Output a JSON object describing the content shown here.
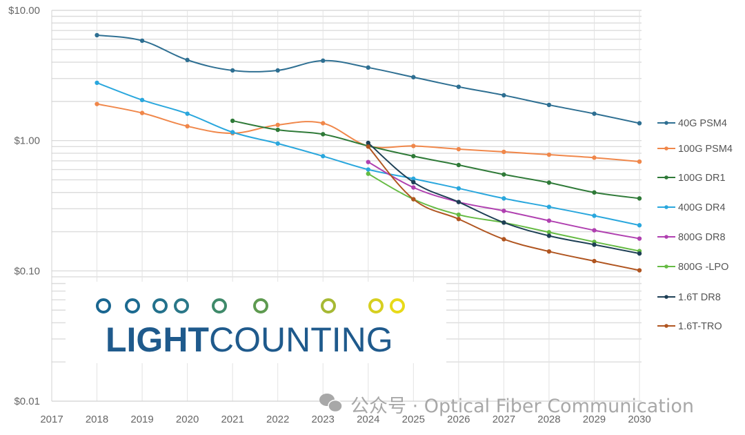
{
  "chart_data": {
    "type": "line",
    "title": "",
    "xlabel": "",
    "ylabel": "",
    "yscale": "log",
    "ylim": [
      0.01,
      10
    ],
    "xlim": [
      2017,
      2030
    ],
    "grid": true,
    "legend_position": "right",
    "y_ticks": [
      {
        "value": 10,
        "label": "$10.00"
      },
      {
        "value": 1,
        "label": "$1.00"
      },
      {
        "value": 0.1,
        "label": "$0.10"
      },
      {
        "value": 0.01,
        "label": "$0.01"
      }
    ],
    "x_ticks": [
      "2017",
      "2018",
      "2019",
      "2020",
      "2021",
      "2022",
      "2023",
      "2024",
      "2025",
      "2026",
      "2027",
      "2028",
      "2029",
      "2030"
    ],
    "series": [
      {
        "name": "40G PSM4",
        "color": "#2e6f92",
        "x": [
          2018,
          2019,
          2020,
          2021,
          2022,
          2023,
          2024,
          2025,
          2026,
          2027,
          2028,
          2029,
          2030
        ],
        "values": [
          6.45,
          5.85,
          4.16,
          3.46,
          3.46,
          4.11,
          3.64,
          3.07,
          2.59,
          2.23,
          1.88,
          1.61,
          1.36
        ]
      },
      {
        "name": "100G PSM4",
        "color": "#f0874a",
        "x": [
          2018,
          2019,
          2020,
          2021,
          2022,
          2023,
          2024,
          2025,
          2026,
          2027,
          2028,
          2029,
          2030
        ],
        "values": [
          1.91,
          1.63,
          1.29,
          1.14,
          1.32,
          1.36,
          0.91,
          0.91,
          0.86,
          0.82,
          0.78,
          0.74,
          0.69
        ]
      },
      {
        "name": "100G DR1",
        "color": "#2f7a38",
        "x": [
          2021,
          2022,
          2023,
          2024,
          2025,
          2026,
          2027,
          2028,
          2029,
          2030
        ],
        "values": [
          1.42,
          1.21,
          1.12,
          0.91,
          0.76,
          0.65,
          0.55,
          0.476,
          0.4,
          0.36
        ]
      },
      {
        "name": "400G DR4",
        "color": "#2aa7dd",
        "x": [
          2018,
          2019,
          2020,
          2021,
          2022,
          2023,
          2024,
          2025,
          2026,
          2027,
          2028,
          2029,
          2030
        ],
        "values": [
          2.78,
          2.05,
          1.61,
          1.16,
          0.95,
          0.76,
          0.6,
          0.51,
          0.43,
          0.36,
          0.31,
          0.265,
          0.224
        ]
      },
      {
        "name": "800G DR8",
        "color": "#b040b0",
        "x": [
          2024,
          2025,
          2026,
          2027,
          2028,
          2029,
          2030
        ],
        "values": [
          0.685,
          0.437,
          0.338,
          0.289,
          0.243,
          0.205,
          0.177
        ]
      },
      {
        "name": "800G -LPO",
        "color": "#66bb44",
        "x": [
          2024,
          2025,
          2026,
          2027,
          2028,
          2029,
          2030
        ],
        "values": [
          0.557,
          0.355,
          0.27,
          0.235,
          0.198,
          0.167,
          0.142
        ]
      },
      {
        "name": "1.6T DR8",
        "color": "#1d3f55",
        "x": [
          2024,
          2025,
          2026,
          2027,
          2028,
          2029,
          2030
        ],
        "values": [
          0.96,
          0.48,
          0.338,
          0.235,
          0.186,
          0.159,
          0.136
        ]
      },
      {
        "name": "1.6T-TRO",
        "color": "#b05520",
        "x": [
          2024,
          2025,
          2026,
          2027,
          2028,
          2029,
          2030
        ],
        "values": [
          0.9,
          0.355,
          0.25,
          0.175,
          0.141,
          0.119,
          0.101
        ]
      }
    ]
  },
  "logo": {
    "text_bold": "LIGHT",
    "text_regular": "COUNTING"
  },
  "watermark": {
    "text": "公众号 · Optical Fiber Communication"
  }
}
